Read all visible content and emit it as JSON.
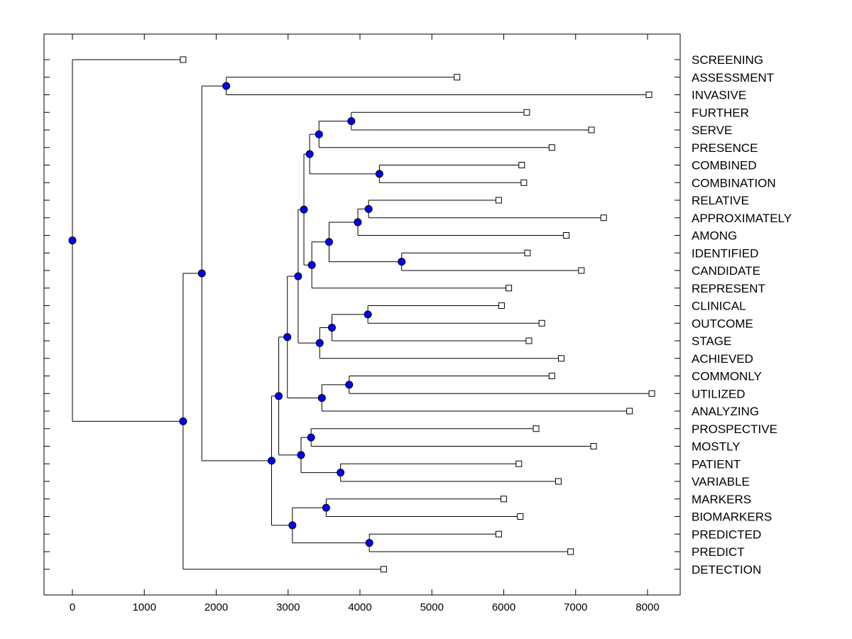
{
  "chart_data": {
    "type": "dendrogram",
    "title": "",
    "xlabel": "",
    "ylabel": "",
    "xlim": [
      -400,
      8500
    ],
    "xticks": [
      0,
      1000,
      2000,
      3000,
      4000,
      5000,
      6000,
      7000,
      8000
    ],
    "tick_labels": [
      "0",
      "1000",
      "2000",
      "3000",
      "4000",
      "5000",
      "6000",
      "7000",
      "8000"
    ],
    "grid": false,
    "colors": {
      "node_fill": "#0000ff",
      "line": "#000000",
      "leaf_fill": "#ffffff"
    },
    "leaves": [
      {
        "label": "SCREENING",
        "value": 1540
      },
      {
        "label": "ASSESSMENT",
        "value": 5350
      },
      {
        "label": "INVASIVE",
        "value": 8020
      },
      {
        "label": "FURTHER",
        "value": 6320
      },
      {
        "label": "SERVE",
        "value": 7220
      },
      {
        "label": "PRESENCE",
        "value": 6670
      },
      {
        "label": "COMBINED",
        "value": 6250
      },
      {
        "label": "COMBINATION",
        "value": 6280
      },
      {
        "label": "RELATIVE",
        "value": 5930
      },
      {
        "label": "APPROXIMATELY",
        "value": 7390
      },
      {
        "label": "AMONG",
        "value": 6870
      },
      {
        "label": "IDENTIFIED",
        "value": 6330
      },
      {
        "label": "CANDIDATE",
        "value": 7080
      },
      {
        "label": "REPRESENT",
        "value": 6070
      },
      {
        "label": "CLINICAL",
        "value": 5970
      },
      {
        "label": "OUTCOME",
        "value": 6530
      },
      {
        "label": "STAGE",
        "value": 6350
      },
      {
        "label": "ACHIEVED",
        "value": 6800
      },
      {
        "label": "COMMONLY",
        "value": 6670
      },
      {
        "label": "UTILIZED",
        "value": 8060
      },
      {
        "label": "ANALYZING",
        "value": 7750
      },
      {
        "label": "PROSPECTIVE",
        "value": 6450
      },
      {
        "label": "MOSTLY",
        "value": 7250
      },
      {
        "label": "PATIENT",
        "value": 6210
      },
      {
        "label": "VARIABLE",
        "value": 6760
      },
      {
        "label": "MARKERS",
        "value": 6000
      },
      {
        "label": "BIOMARKERS",
        "value": 6230
      },
      {
        "label": "PREDICTED",
        "value": 5930
      },
      {
        "label": "PREDICT",
        "value": 6930
      },
      {
        "label": "DETECTION",
        "value": 4330
      }
    ],
    "merges": [
      {
        "id": "n_assess_inv",
        "children": [
          "ASSESSMENT",
          "INVASIVE"
        ],
        "height": 2140
      },
      {
        "id": "n_fur_serve",
        "children": [
          "FURTHER",
          "SERVE"
        ],
        "height": 3880
      },
      {
        "id": "n_fsp",
        "children": [
          "n_fur_serve",
          "PRESENCE"
        ],
        "height": 3430
      },
      {
        "id": "n_comb",
        "children": [
          "COMBINED",
          "COMBINATION"
        ],
        "height": 4270
      },
      {
        "id": "n_fspc",
        "children": [
          "n_fsp",
          "n_comb"
        ],
        "height": 3300
      },
      {
        "id": "n_rel_app",
        "children": [
          "RELATIVE",
          "APPROXIMATELY"
        ],
        "height": 4120
      },
      {
        "id": "n_raa",
        "children": [
          "n_rel_app",
          "AMONG"
        ],
        "height": 3970
      },
      {
        "id": "n_id_cand",
        "children": [
          "IDENTIFIED",
          "CANDIDATE"
        ],
        "height": 4580
      },
      {
        "id": "n_raaic",
        "children": [
          "n_raa",
          "n_id_cand"
        ],
        "height": 3570
      },
      {
        "id": "n_raaicr",
        "children": [
          "n_raaic",
          "REPRESENT"
        ],
        "height": 3330
      },
      {
        "id": "n_mid",
        "children": [
          "n_fspc",
          "n_raaicr"
        ],
        "height": 3220
      },
      {
        "id": "n_cli_out",
        "children": [
          "CLINICAL",
          "OUTCOME"
        ],
        "height": 4110
      },
      {
        "id": "n_cos",
        "children": [
          "n_cli_out",
          "STAGE"
        ],
        "height": 3610
      },
      {
        "id": "n_cosa",
        "children": [
          "n_cos",
          "ACHIEVED"
        ],
        "height": 3440
      },
      {
        "id": "n_mid2",
        "children": [
          "n_mid",
          "n_cosa"
        ],
        "height": 3140
      },
      {
        "id": "n_com_util",
        "children": [
          "COMMONLY",
          "UTILIZED"
        ],
        "height": 3850
      },
      {
        "id": "n_cua",
        "children": [
          "n_com_util",
          "ANALYZING"
        ],
        "height": 3470
      },
      {
        "id": "n_mid3",
        "children": [
          "n_mid2",
          "n_cua"
        ],
        "height": 2990
      },
      {
        "id": "n_pro_most",
        "children": [
          "PROSPECTIVE",
          "MOSTLY"
        ],
        "height": 3320
      },
      {
        "id": "n_pat_var",
        "children": [
          "PATIENT",
          "VARIABLE"
        ],
        "height": 3730
      },
      {
        "id": "n_pmpv",
        "children": [
          "n_pro_most",
          "n_pat_var"
        ],
        "height": 3180
      },
      {
        "id": "n_mid4",
        "children": [
          "n_mid3",
          "n_pmpv"
        ],
        "height": 2870
      },
      {
        "id": "n_mark_bio",
        "children": [
          "MARKERS",
          "BIOMARKERS"
        ],
        "height": 3530
      },
      {
        "id": "n_pred",
        "children": [
          "PREDICTED",
          "PREDICT"
        ],
        "height": 4130
      },
      {
        "id": "n_mbp",
        "children": [
          "n_mark_bio",
          "n_pred"
        ],
        "height": 3060
      },
      {
        "id": "n_mid5",
        "children": [
          "n_mid4",
          "n_mbp"
        ],
        "height": 2770
      },
      {
        "id": "n_big",
        "children": [
          "n_assess_inv",
          "n_mid5"
        ],
        "height": 1800
      },
      {
        "id": "n_bigd",
        "children": [
          "n_big",
          "DETECTION"
        ],
        "height": 1540
      },
      {
        "id": "n_root",
        "children": [
          "SCREENING",
          "n_bigd"
        ],
        "height": 0
      }
    ]
  }
}
